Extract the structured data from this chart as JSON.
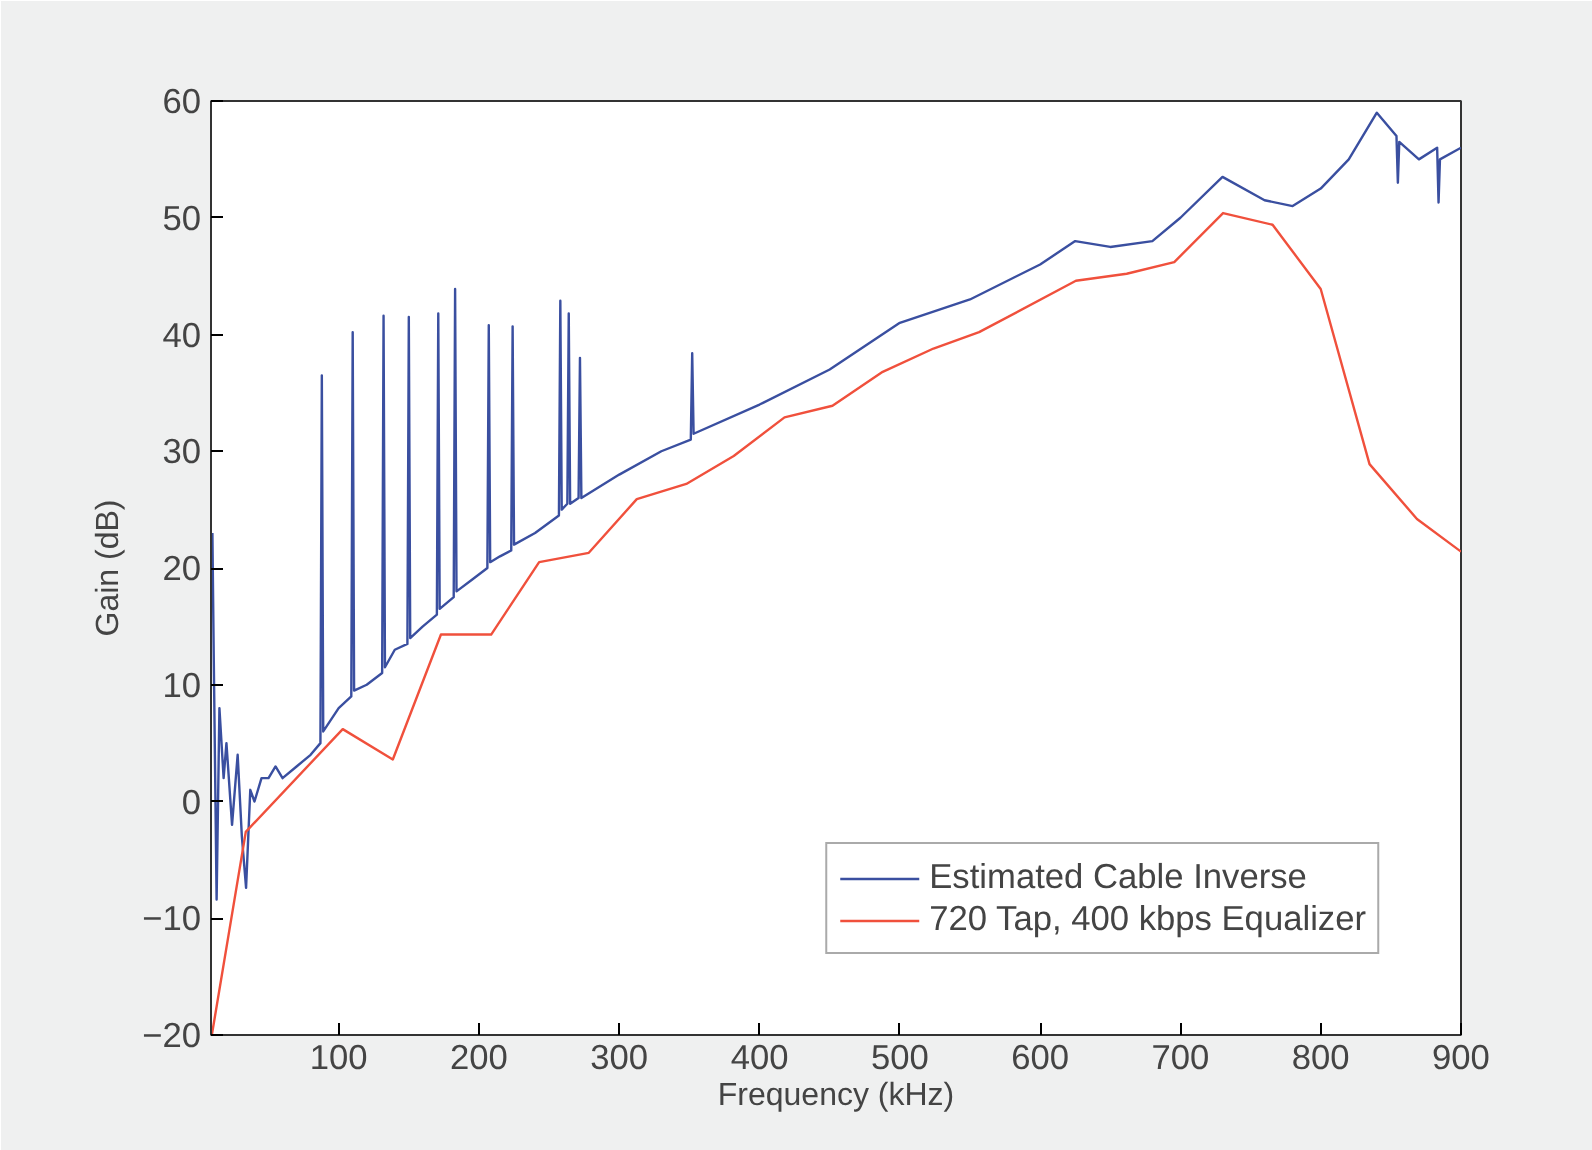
{
  "chart_data": {
    "type": "line",
    "xlabel": "Frequency (kHz)",
    "ylabel": "Gain (dB)",
    "xlim": [
      9,
      900
    ],
    "ylim": [
      -20,
      60
    ],
    "xticks": [
      100,
      200,
      300,
      400,
      500,
      600,
      700,
      800,
      900
    ],
    "yticks": [
      -20,
      -10,
      0,
      10,
      20,
      30,
      40,
      50,
      60
    ],
    "grid": false,
    "legend": "bottom right",
    "line_style": "solid",
    "marker": "none",
    "series": [
      {
        "name": "Estimated Cable Inverse",
        "color": "#3a4fa0",
        "x": [
          10,
          11,
          13,
          15,
          18,
          20,
          24,
          28,
          31,
          34,
          37,
          40,
          45,
          50,
          55,
          60,
          70,
          80,
          87,
          88,
          89,
          100,
          109,
          110,
          111,
          120,
          131,
          132,
          133,
          140,
          149,
          150,
          151,
          160,
          170,
          171,
          172,
          182,
          183,
          184,
          195,
          206,
          207,
          208,
          215,
          223,
          224,
          225,
          240,
          257,
          258,
          259,
          263,
          264,
          265,
          271,
          272,
          273,
          300,
          330,
          351,
          352,
          353,
          400,
          450,
          500,
          550,
          600,
          625,
          650,
          680,
          700,
          730,
          760,
          780,
          800,
          820,
          840,
          854,
          855,
          856,
          870,
          883,
          884,
          885,
          900
        ],
        "values": [
          23,
          12,
          -8.4,
          8,
          2,
          5,
          -2,
          4,
          -3,
          -7.4,
          1,
          0,
          2,
          2,
          3,
          2,
          3,
          4,
          5,
          36.5,
          6,
          8,
          9,
          40.2,
          9.5,
          10,
          11,
          41.6,
          11.5,
          13,
          13.5,
          41.5,
          14,
          15,
          16,
          41.8,
          16.5,
          17.5,
          43.9,
          18,
          19,
          20,
          40.8,
          20.5,
          21,
          21.5,
          40.7,
          22,
          23,
          24.5,
          42.9,
          25,
          25.5,
          41.8,
          25.5,
          26,
          38,
          26,
          28,
          30,
          31,
          38.4,
          31.5,
          34,
          37,
          41,
          43,
          46,
          48,
          47.5,
          48,
          50,
          53.5,
          51.5,
          51,
          52.5,
          55,
          59,
          57,
          53,
          56.5,
          55,
          56,
          51.3,
          55,
          56
        ]
      },
      {
        "name": "720 Tap, 400 kbps Equalizer",
        "color": "#f0503c",
        "x": [
          9.6,
          33.8,
          102.9,
          138.6,
          172.9,
          208.7,
          242.9,
          278.3,
          312.5,
          347.8,
          381.6,
          417.8,
          452,
          487.8,
          524,
          556.5,
          625.5,
          661.7,
          695.6,
          730.4,
          765.7,
          800,
          834.8,
          868.6,
          900
        ],
        "values": [
          -20,
          -2.6,
          6.2,
          3.6,
          14.3,
          14.3,
          20.5,
          21.3,
          25.9,
          27.2,
          29.6,
          32.9,
          33.9,
          36.8,
          38.8,
          40.2,
          44.6,
          45.2,
          46.2,
          50.4,
          49.4,
          43.9,
          28.9,
          24.2,
          21.4
        ]
      }
    ]
  }
}
